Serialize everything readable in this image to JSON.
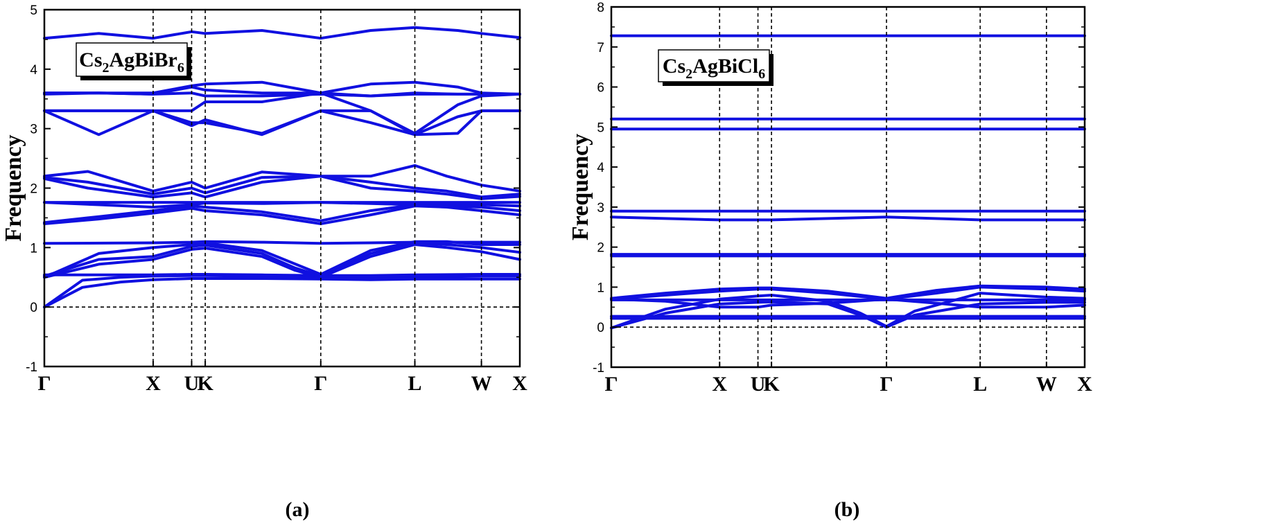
{
  "chart_data": [
    {
      "type": "line",
      "panel_caption": "(a)",
      "legend_label_parts": [
        "Cs",
        "2",
        "AgBiBr",
        "6"
      ],
      "ylabel": "Frequency",
      "xlabel": "",
      "ylim": [
        -1,
        5
      ],
      "yticks": [
        -1,
        0,
        1,
        2,
        3,
        4,
        5
      ],
      "kpath_labels": [
        "Γ",
        "X",
        "U",
        "K",
        "Γ",
        "L",
        "W",
        "X"
      ],
      "kpath_x": [
        0,
        1,
        1.354,
        1.479,
        2.541,
        3.406,
        4.018,
        4.371
      ],
      "line_color": "#1010e0",
      "series": [
        {
          "x": [
            0,
            0.35,
            0.7,
            1.0,
            1.354,
            1.479,
            2.0,
            2.541,
            3.0,
            3.406,
            3.7,
            4.018,
            4.371
          ],
          "values": [
            0,
            0.33,
            0.42,
            0.46,
            0.48,
            0.48,
            0.48,
            0.47,
            0.46,
            0.47,
            0.47,
            0.47,
            0.47
          ]
        },
        {
          "x": [
            0,
            0.35,
            0.7,
            1.0,
            1.354,
            1.479,
            2.0,
            2.541,
            3.0,
            3.406,
            3.7,
            4.018,
            4.371
          ],
          "values": [
            0,
            0.45,
            0.5,
            0.52,
            0.53,
            0.53,
            0.52,
            0.5,
            0.5,
            0.51,
            0.51,
            0.52,
            0.52
          ]
        },
        {
          "x": [
            0,
            1.0,
            1.354,
            1.479,
            2.0,
            2.541,
            3.0,
            3.406,
            4.018,
            4.371
          ],
          "values": [
            0.54,
            0.54,
            0.55,
            0.55,
            0.54,
            0.53,
            0.53,
            0.54,
            0.55,
            0.55
          ]
        },
        {
          "x": [
            0,
            0.5,
            1.0,
            1.354,
            1.479,
            2.0,
            2.3,
            2.541,
            3.0,
            3.406,
            3.7,
            4.018,
            4.371
          ],
          "values": [
            0.5,
            0.72,
            0.8,
            0.97,
            0.99,
            0.85,
            0.62,
            0.5,
            0.85,
            1.05,
            1.0,
            0.93,
            0.8
          ]
        },
        {
          "x": [
            0,
            0.5,
            1.0,
            1.354,
            1.479,
            2.0,
            2.3,
            2.541,
            3.0,
            3.406,
            3.7,
            4.018,
            4.371
          ],
          "values": [
            0.52,
            0.8,
            0.85,
            1.02,
            1.04,
            0.9,
            0.66,
            0.52,
            0.9,
            1.08,
            1.05,
            1.0,
            0.92
          ]
        },
        {
          "x": [
            0,
            0.5,
            1.0,
            1.354,
            1.479,
            2.0,
            2.541,
            3.0,
            3.406,
            3.7,
            4.018,
            4.371
          ],
          "values": [
            0.5,
            0.9,
            1.0,
            1.05,
            1.08,
            0.95,
            0.55,
            0.95,
            1.1,
            1.1,
            1.05,
            1.05
          ]
        },
        {
          "x": [
            0,
            1.0,
            1.354,
            1.479,
            2.0,
            2.541,
            3.0,
            3.406,
            4.018,
            4.371
          ],
          "values": [
            1.07,
            1.08,
            1.09,
            1.1,
            1.09,
            1.07,
            1.08,
            1.09,
            1.09,
            1.09
          ]
        },
        {
          "x": [
            0,
            4.371
          ],
          "values": [
            1.76,
            1.76
          ]
        },
        {
          "x": [
            0,
            0.5,
            1.0,
            1.354,
            1.479,
            2.0,
            2.541,
            3.0,
            3.406,
            3.7,
            4.018,
            4.371
          ],
          "values": [
            1.4,
            1.48,
            1.58,
            1.66,
            1.62,
            1.55,
            1.4,
            1.55,
            1.7,
            1.68,
            1.62,
            1.55
          ]
        },
        {
          "x": [
            0,
            0.5,
            1.0,
            1.354,
            1.479,
            2.0,
            2.541,
            3.0,
            3.406,
            3.7,
            4.018,
            4.371
          ],
          "values": [
            1.42,
            1.52,
            1.62,
            1.7,
            1.68,
            1.6,
            1.45,
            1.62,
            1.72,
            1.7,
            1.68,
            1.62
          ]
        },
        {
          "x": [
            0,
            0.5,
            1.0,
            1.354,
            1.479,
            2.0,
            2.541,
            3.0,
            3.406,
            4.018,
            4.371
          ],
          "values": [
            1.76,
            1.72,
            1.68,
            1.72,
            1.75,
            1.74,
            1.76,
            1.74,
            1.72,
            1.72,
            1.7
          ]
        },
        {
          "x": [
            0,
            0.4,
            1.0,
            1.354,
            1.479,
            2.0,
            2.541,
            3.0,
            3.406,
            3.7,
            4.018,
            4.371
          ],
          "values": [
            2.2,
            2.28,
            1.95,
            2.1,
            2.0,
            2.27,
            2.2,
            2.2,
            2.38,
            2.2,
            2.05,
            1.95
          ]
        },
        {
          "x": [
            0,
            0.4,
            1.0,
            1.354,
            1.479,
            2.0,
            2.541,
            3.0,
            3.406,
            3.7,
            4.018,
            4.371
          ],
          "values": [
            2.18,
            2.1,
            1.9,
            2.0,
            1.92,
            2.18,
            2.2,
            2.1,
            2.0,
            1.95,
            1.85,
            1.9
          ]
        },
        {
          "x": [
            0,
            0.4,
            1.0,
            1.354,
            1.479,
            2.0,
            2.541,
            3.0,
            3.406,
            3.7,
            4.018,
            4.371
          ],
          "values": [
            2.16,
            2.0,
            1.85,
            1.92,
            1.85,
            2.1,
            2.2,
            2.0,
            1.95,
            1.9,
            1.82,
            1.86
          ]
        },
        {
          "x": [
            0,
            0.5,
            1.0,
            1.354,
            1.479,
            2.0,
            2.541,
            3.0,
            3.406,
            3.8,
            4.018,
            4.371
          ],
          "values": [
            3.3,
            2.9,
            3.3,
            3.05,
            3.15,
            2.9,
            3.3,
            3.1,
            2.9,
            2.92,
            3.3,
            3.3
          ]
        },
        {
          "x": [
            0,
            0.5,
            1.0,
            1.354,
            1.479,
            2.0,
            2.541,
            3.0,
            3.406,
            3.8,
            4.018,
            4.371
          ],
          "values": [
            3.3,
            3.3,
            3.3,
            3.1,
            3.1,
            2.92,
            3.3,
            3.3,
            2.9,
            3.2,
            3.3,
            3.3
          ]
        },
        {
          "x": [
            0,
            0.5,
            1.0,
            1.354,
            1.479,
            2.0,
            2.541,
            3.0,
            3.406,
            3.8,
            4.018,
            4.371
          ],
          "values": [
            3.3,
            3.3,
            3.3,
            3.3,
            3.45,
            3.45,
            3.6,
            3.3,
            2.92,
            3.4,
            3.55,
            3.58
          ]
        },
        {
          "x": [
            0,
            0.5,
            1.0,
            1.354,
            1.479,
            2.0,
            2.541,
            3.0,
            3.406,
            3.8,
            4.018,
            4.371
          ],
          "values": [
            3.6,
            3.6,
            3.58,
            3.7,
            3.65,
            3.6,
            3.6,
            3.55,
            3.6,
            3.58,
            3.58,
            3.58
          ]
        },
        {
          "x": [
            0,
            0.5,
            1.0,
            1.354,
            1.479,
            2.0,
            2.541,
            3.0,
            3.406,
            3.8,
            4.018,
            4.371
          ],
          "values": [
            3.58,
            3.6,
            3.6,
            3.72,
            3.75,
            3.78,
            3.6,
            3.75,
            3.78,
            3.7,
            3.6,
            3.58
          ]
        },
        {
          "x": [
            0,
            0.5,
            1.0,
            1.354,
            1.479,
            2.0,
            2.541,
            3.0,
            3.406,
            3.8,
            4.018,
            4.371
          ],
          "values": [
            3.6,
            3.6,
            3.58,
            3.6,
            3.55,
            3.55,
            3.58,
            3.55,
            3.58,
            3.58,
            3.58,
            3.58
          ]
        },
        {
          "x": [
            0,
            0.5,
            1.0,
            1.354,
            1.479,
            2.0,
            2.541,
            3.0,
            3.406,
            3.8,
            4.018,
            4.371
          ],
          "values": [
            4.52,
            4.6,
            4.52,
            4.63,
            4.6,
            4.65,
            4.52,
            4.65,
            4.7,
            4.65,
            4.6,
            4.53
          ]
        }
      ]
    },
    {
      "type": "line",
      "panel_caption": "(b)",
      "legend_label_parts": [
        "Cs",
        "2",
        "AgBiCl",
        "6"
      ],
      "ylabel": "Frequency",
      "xlabel": "",
      "ylim": [
        -1,
        8
      ],
      "yticks": [
        -1,
        0,
        1,
        2,
        3,
        4,
        5,
        6,
        7,
        8
      ],
      "kpath_labels": [
        "Γ",
        "X",
        "U",
        "K",
        "Γ",
        "L",
        "W",
        "X"
      ],
      "kpath_x": [
        0,
        1,
        1.354,
        1.479,
        2.541,
        3.406,
        4.018,
        4.371
      ],
      "line_color": "#1010e0",
      "series": [
        {
          "x": [
            0,
            0.5,
            1.0,
            1.354,
            1.479,
            2.0,
            2.3,
            2.541,
            2.8,
            3.406,
            4.018,
            4.371
          ],
          "values": [
            -0.02,
            0.35,
            0.58,
            0.62,
            0.63,
            0.58,
            0.3,
            0.0,
            0.3,
            0.58,
            0.62,
            0.62
          ]
        },
        {
          "x": [
            0,
            0.5,
            1.0,
            1.354,
            1.479,
            2.0,
            2.3,
            2.541,
            2.8,
            3.406,
            4.018,
            4.371
          ],
          "values": [
            -0.02,
            0.45,
            0.7,
            0.78,
            0.8,
            0.65,
            0.35,
            0.02,
            0.4,
            0.85,
            0.75,
            0.72
          ]
        },
        {
          "x": [
            0,
            1.0,
            1.354,
            1.479,
            2.541,
            3.406,
            4.018,
            4.371
          ],
          "values": [
            0.22,
            0.22,
            0.22,
            0.22,
            0.22,
            0.22,
            0.22,
            0.22
          ]
        },
        {
          "x": [
            0,
            1.0,
            1.354,
            1.479,
            2.541,
            3.406,
            4.018,
            4.371
          ],
          "values": [
            0.27,
            0.27,
            0.27,
            0.27,
            0.27,
            0.27,
            0.27,
            0.27
          ]
        },
        {
          "x": [
            0,
            0.5,
            1.0,
            1.354,
            1.479,
            2.0,
            2.541,
            3.0,
            3.406,
            4.018,
            4.371
          ],
          "values": [
            0.7,
            0.65,
            0.5,
            0.5,
            0.55,
            0.6,
            0.7,
            0.6,
            0.5,
            0.5,
            0.55
          ]
        },
        {
          "x": [
            0,
            0.5,
            1.0,
            1.354,
            1.479,
            2.0,
            2.541,
            3.0,
            3.406,
            4.018,
            4.371
          ],
          "values": [
            0.7,
            0.8,
            0.9,
            0.95,
            0.95,
            0.85,
            0.7,
            0.85,
            1.0,
            0.95,
            0.9
          ]
        },
        {
          "x": [
            0,
            0.5,
            1.0,
            1.354,
            1.479,
            2.0,
            2.541,
            3.0,
            3.406,
            4.018,
            4.371
          ],
          "values": [
            0.72,
            0.85,
            0.95,
            0.98,
            0.98,
            0.9,
            0.72,
            0.92,
            1.03,
            1.0,
            0.95
          ]
        },
        {
          "x": [
            0,
            1.0,
            1.354,
            1.479,
            2.541,
            3.406,
            4.018,
            4.371
          ],
          "values": [
            0.68,
            0.68,
            0.68,
            0.68,
            0.68,
            0.68,
            0.68,
            0.68
          ]
        },
        {
          "x": [
            0,
            4.371
          ],
          "values": [
            1.78,
            1.78
          ]
        },
        {
          "x": [
            0,
            4.371
          ],
          "values": [
            1.82,
            1.82
          ]
        },
        {
          "x": [
            0,
            1.0,
            1.354,
            1.479,
            2.541,
            3.406,
            4.018,
            4.371
          ],
          "values": [
            2.75,
            2.68,
            2.68,
            2.68,
            2.75,
            2.68,
            2.68,
            2.68
          ]
        },
        {
          "x": [
            0,
            4.371
          ],
          "values": [
            2.9,
            2.9
          ]
        },
        {
          "x": [
            0,
            4.371
          ],
          "values": [
            4.95,
            4.95
          ]
        },
        {
          "x": [
            0,
            4.371
          ],
          "values": [
            5.2,
            5.2
          ]
        },
        {
          "x": [
            0,
            4.371
          ],
          "values": [
            7.28,
            7.28
          ]
        }
      ]
    }
  ]
}
